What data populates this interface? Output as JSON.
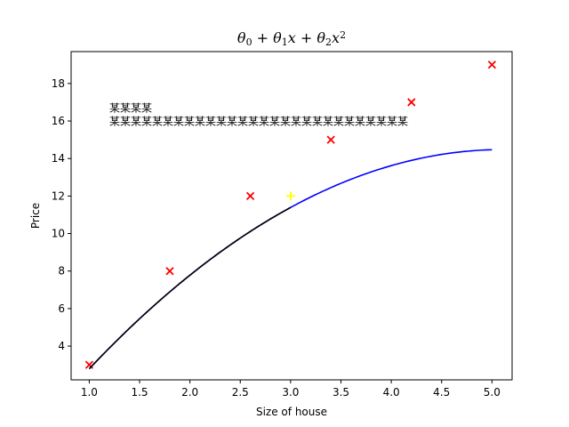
{
  "chart_data": {
    "type": "scatter",
    "title": "θ₀ + θ₁x + θ₂x²",
    "xlabel": "Size of house",
    "ylabel": "Price",
    "xlim": [
      0.82,
      5.2
    ],
    "ylim": [
      2.2,
      19.7
    ],
    "xticks": [
      1.0,
      1.5,
      2.0,
      2.5,
      3.0,
      3.5,
      4.0,
      4.5,
      5.0
    ],
    "xtick_labels": [
      "1.0",
      "1.5",
      "2.0",
      "2.5",
      "3.0",
      "3.5",
      "4.0",
      "4.5",
      "5.0"
    ],
    "yticks": [
      4,
      6,
      8,
      10,
      12,
      14,
      16,
      18
    ],
    "ytick_labels": [
      "4",
      "6",
      "8",
      "10",
      "12",
      "14",
      "16",
      "18"
    ],
    "grid": false,
    "annotation": {
      "lines": [
        "某某某某",
        "某某某某某某某某某某某某某某某某某某某某某某某某某某某某"
      ],
      "x": 1.2,
      "y": 16.5
    },
    "series": [
      {
        "marker": "x",
        "color": "#ff0000",
        "x": [
          1.0,
          1.8,
          2.6,
          3.4,
          4.2,
          5.0
        ],
        "y": [
          3.0,
          8.0,
          12.0,
          15.0,
          17.0,
          19.0
        ]
      },
      {
        "marker": "+",
        "color": "#ffff00",
        "x": [
          3.0
        ],
        "y": [
          12.0
        ]
      },
      {
        "line": "quadratic-fit",
        "color": "#0000ff",
        "x_range": [
          1.0,
          5.0
        ],
        "coefficients": [
          -3.58,
          7.06,
          -0.69
        ]
      },
      {
        "line": "quadratic-fit",
        "color": "#000000",
        "x_range": [
          1.0,
          3.0
        ],
        "coefficients": [
          -3.58,
          7.06,
          -0.69
        ]
      }
    ]
  }
}
